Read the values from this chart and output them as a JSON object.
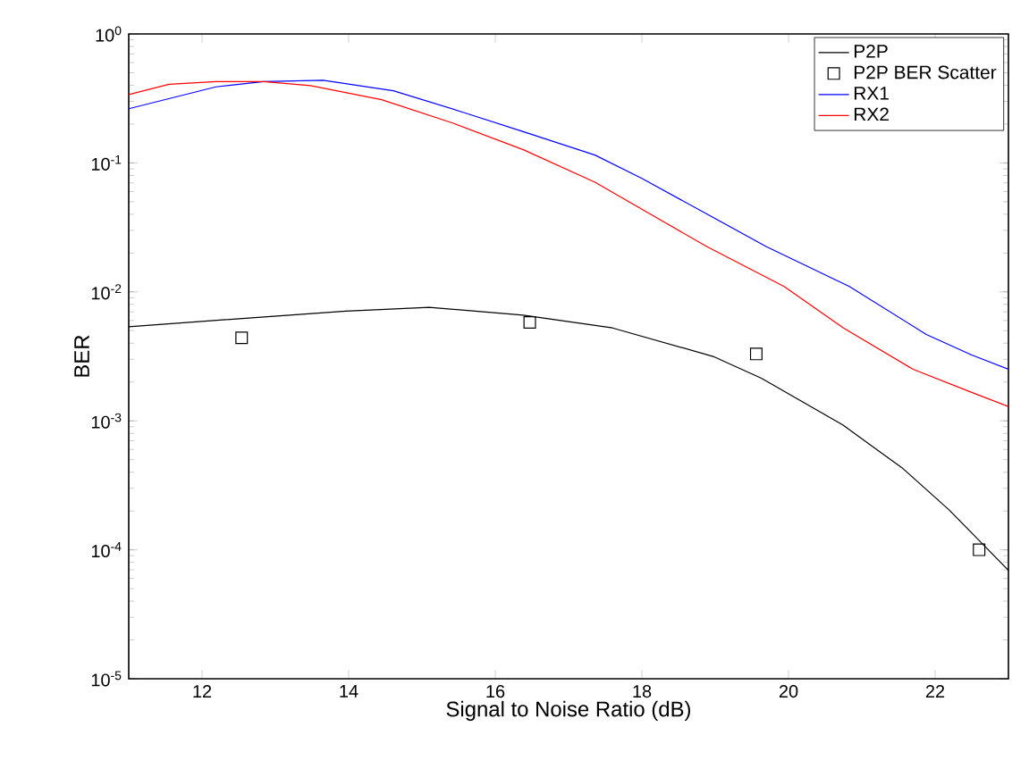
{
  "chart_data": {
    "type": "line",
    "xlabel": "Signal to Noise Ratio (dB)",
    "ylabel": "BER",
    "log": "y",
    "xlim": [
      11,
      23
    ],
    "ylim": [
      1e-05,
      1
    ],
    "xticks": [
      12,
      14,
      16,
      18,
      20,
      22
    ],
    "yticks": [
      {
        "value": 1e-05,
        "label": "10$^{-5}$"
      },
      {
        "value": 0.0001,
        "label": "10$^{-4}$"
      },
      {
        "value": 0.001,
        "label": "10$^{-3}$"
      },
      {
        "value": 0.01,
        "label": "10$^{-2}$"
      },
      {
        "value": 0.1,
        "label": "10$^{-1}$"
      },
      {
        "value": 1,
        "label": "10$^{0}$"
      }
    ],
    "grid": false,
    "legend": "top right",
    "series": [
      {
        "name": "P2P",
        "color": "#000000",
        "marker": "none",
        "x": [
          11,
          12.68,
          13.96,
          15.1,
          16.38,
          17.6,
          18.97,
          19.63,
          20.74,
          21.56,
          22.19,
          23
        ],
        "values": [
          0.00537,
          0.0063,
          0.00708,
          0.00759,
          0.0066,
          0.00525,
          0.00316,
          0.00214,
          0.00093,
          0.000427,
          0.000204,
          6.92e-05
        ]
      },
      {
        "name": "P2P BER Scatter",
        "type": "scatter",
        "color": "#000000",
        "marker": "square",
        "x": [
          12.54,
          16.47,
          19.56,
          22.6
        ],
        "values": [
          0.0044,
          0.0058,
          0.0033,
          0.0001
        ]
      },
      {
        "name": "RX1",
        "color": "#0000ff",
        "marker": "none",
        "x": [
          11,
          12.19,
          12.84,
          13.65,
          14.61,
          15.58,
          16.39,
          17.36,
          18.0,
          19.7,
          20.83,
          21.88,
          22.5,
          23
        ],
        "values": [
          0.263,
          0.389,
          0.427,
          0.437,
          0.363,
          0.245,
          0.174,
          0.115,
          0.0759,
          0.0224,
          0.011,
          0.00468,
          0.00324,
          0.00251
        ]
      },
      {
        "name": "RX2",
        "color": "#ff0000",
        "marker": "none",
        "x": [
          11,
          11.55,
          12.19,
          12.84,
          13.48,
          14.45,
          15.42,
          16.39,
          17.36,
          18.0,
          18.89,
          19.94,
          20.75,
          21.7,
          22.5,
          23
        ],
        "values": [
          0.339,
          0.407,
          0.427,
          0.427,
          0.398,
          0.309,
          0.204,
          0.126,
          0.0708,
          0.0437,
          0.0224,
          0.011,
          0.00525,
          0.00251,
          0.00166,
          0.00129
        ]
      }
    ]
  }
}
